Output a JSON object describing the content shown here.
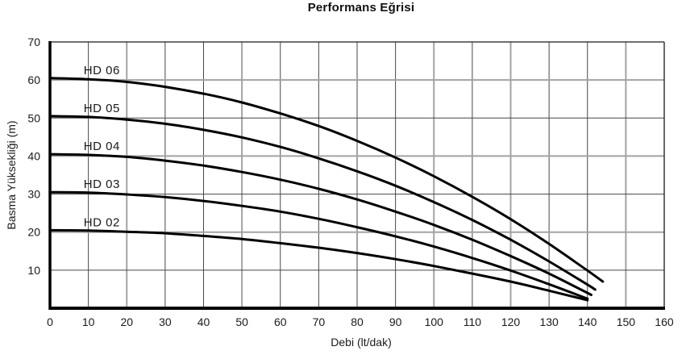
{
  "chart_data": {
    "type": "line",
    "title": "Performans Eğrisi",
    "xlabel": "Debi (lt/dak)",
    "ylabel": "Basma Yüksekliği (m)",
    "xlim": [
      0,
      160
    ],
    "ylim": [
      0,
      70
    ],
    "x_ticks": [
      0,
      10,
      20,
      30,
      40,
      50,
      60,
      70,
      80,
      90,
      100,
      110,
      120,
      130,
      140,
      150,
      160
    ],
    "y_ticks": [
      10,
      20,
      30,
      40,
      50,
      60,
      70
    ],
    "grid": true,
    "legend_position": "inline-labels-above-curves",
    "curve_color": "#000000",
    "grid_minor_color": "#474747",
    "grid_major_color": "#a3a3a3",
    "axis_color": "#000000",
    "grid_major_x": [
      20,
      50,
      100,
      120,
      150
    ],
    "grid_major_y": [
      20,
      40,
      60
    ],
    "series": [
      {
        "name": "HD 06",
        "points": [
          [
            0,
            60.5
          ],
          [
            10,
            60.2
          ],
          [
            20,
            59.5
          ],
          [
            30,
            58.2
          ],
          [
            40,
            56.4
          ],
          [
            50,
            54.1
          ],
          [
            60,
            51.2
          ],
          [
            70,
            47.9
          ],
          [
            80,
            44.0
          ],
          [
            90,
            39.6
          ],
          [
            100,
            34.7
          ],
          [
            110,
            29.3
          ],
          [
            120,
            23.4
          ],
          [
            130,
            16.9
          ],
          [
            140,
            9.9
          ],
          [
            144,
            7.0
          ]
        ]
      },
      {
        "name": "HD 05",
        "points": [
          [
            0,
            50.5
          ],
          [
            10,
            50.3
          ],
          [
            20,
            49.6
          ],
          [
            30,
            48.5
          ],
          [
            40,
            46.9
          ],
          [
            50,
            44.9
          ],
          [
            60,
            42.4
          ],
          [
            70,
            39.4
          ],
          [
            80,
            36.0
          ],
          [
            90,
            32.2
          ],
          [
            100,
            27.9
          ],
          [
            110,
            23.2
          ],
          [
            120,
            18.0
          ],
          [
            130,
            12.3
          ],
          [
            140,
            6.2
          ],
          [
            142,
            4.9
          ]
        ]
      },
      {
        "name": "HD 04",
        "points": [
          [
            0,
            40.5
          ],
          [
            10,
            40.3
          ],
          [
            20,
            39.8
          ],
          [
            30,
            38.8
          ],
          [
            40,
            37.5
          ],
          [
            50,
            35.8
          ],
          [
            60,
            33.8
          ],
          [
            70,
            31.4
          ],
          [
            80,
            28.6
          ],
          [
            90,
            25.4
          ],
          [
            100,
            21.9
          ],
          [
            110,
            18.0
          ],
          [
            120,
            13.7
          ],
          [
            130,
            9.1
          ],
          [
            141,
            3.5
          ]
        ]
      },
      {
        "name": "HD 03",
        "points": [
          [
            0,
            30.5
          ],
          [
            10,
            30.4
          ],
          [
            20,
            29.9
          ],
          [
            30,
            29.2
          ],
          [
            40,
            28.2
          ],
          [
            50,
            26.9
          ],
          [
            60,
            25.4
          ],
          [
            70,
            23.5
          ],
          [
            80,
            21.3
          ],
          [
            90,
            18.9
          ],
          [
            100,
            16.2
          ],
          [
            110,
            13.2
          ],
          [
            120,
            9.9
          ],
          [
            130,
            6.3
          ],
          [
            140,
            2.5
          ]
        ]
      },
      {
        "name": "HD 02",
        "points": [
          [
            0,
            20.5
          ],
          [
            10,
            20.4
          ],
          [
            20,
            20.1
          ],
          [
            30,
            19.7
          ],
          [
            40,
            19.0
          ],
          [
            50,
            18.2
          ],
          [
            60,
            17.1
          ],
          [
            70,
            15.9
          ],
          [
            80,
            14.5
          ],
          [
            90,
            12.9
          ],
          [
            100,
            11.1
          ],
          [
            110,
            9.1
          ],
          [
            120,
            7.0
          ],
          [
            130,
            4.6
          ],
          [
            140,
            2.1
          ]
        ]
      }
    ],
    "series_label_x": 13.5
  }
}
